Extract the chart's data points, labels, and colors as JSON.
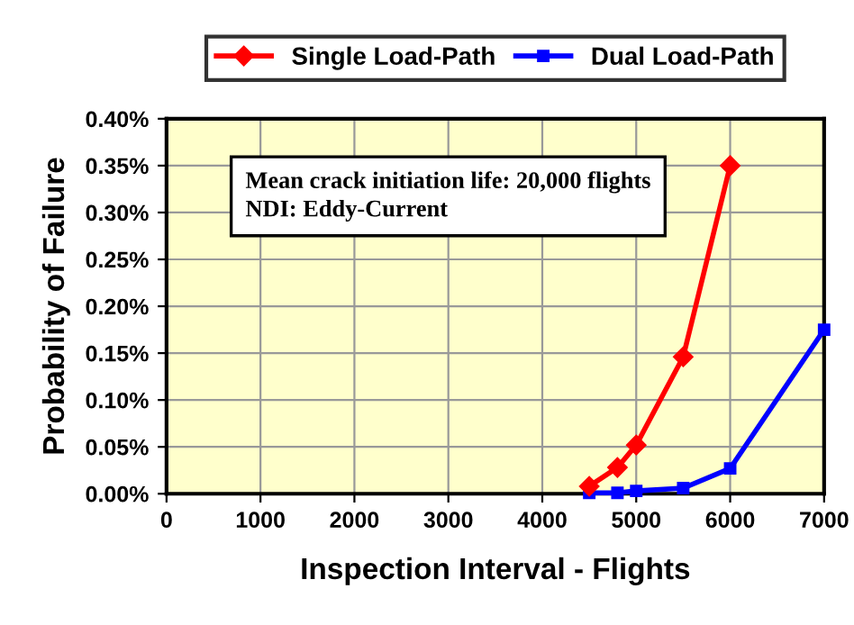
{
  "chart_data": {
    "type": "line",
    "xlabel": "Inspection Interval - Flights",
    "ylabel": "Probability of Failure",
    "x": [
      4500,
      4800,
      5000,
      5500,
      6000
    ],
    "series": [
      {
        "name": "Single Load-Path",
        "color": "#ff0000",
        "marker": "diamond",
        "values": [
          0.008,
          0.028,
          0.052,
          0.146,
          0.35
        ]
      },
      {
        "name": "Dual Load-Path",
        "color": "#0000ff",
        "marker": "square",
        "x": [
          4500,
          4800,
          5000,
          5500,
          6000,
          7000
        ],
        "values": [
          0.001,
          0.001,
          0.003,
          0.006,
          0.027,
          0.175
        ]
      }
    ],
    "xlim": [
      0,
      7000
    ],
    "xticks": [
      0,
      1000,
      2000,
      3000,
      4000,
      5000,
      6000,
      7000
    ],
    "ylim": [
      0,
      0.4
    ],
    "yticks": [
      {
        "value": 0,
        "label": "0.00%"
      },
      {
        "value": 0.05,
        "label": "0.05%"
      },
      {
        "value": 0.1,
        "label": "0.10%"
      },
      {
        "value": 0.15,
        "label": "0.15%"
      },
      {
        "value": 0.2,
        "label": "0.20%"
      },
      {
        "value": 0.25,
        "label": "0.25%"
      },
      {
        "value": 0.3,
        "label": "0.30%"
      },
      {
        "value": 0.35,
        "label": "0.35%"
      },
      {
        "value": 0.4,
        "label": "0.40%"
      }
    ],
    "annotations": [
      "Mean crack initiation life: 20,000 flights\nNDI: Eddy-Current"
    ],
    "grid": true,
    "legend": "top",
    "line_style": "solid"
  }
}
